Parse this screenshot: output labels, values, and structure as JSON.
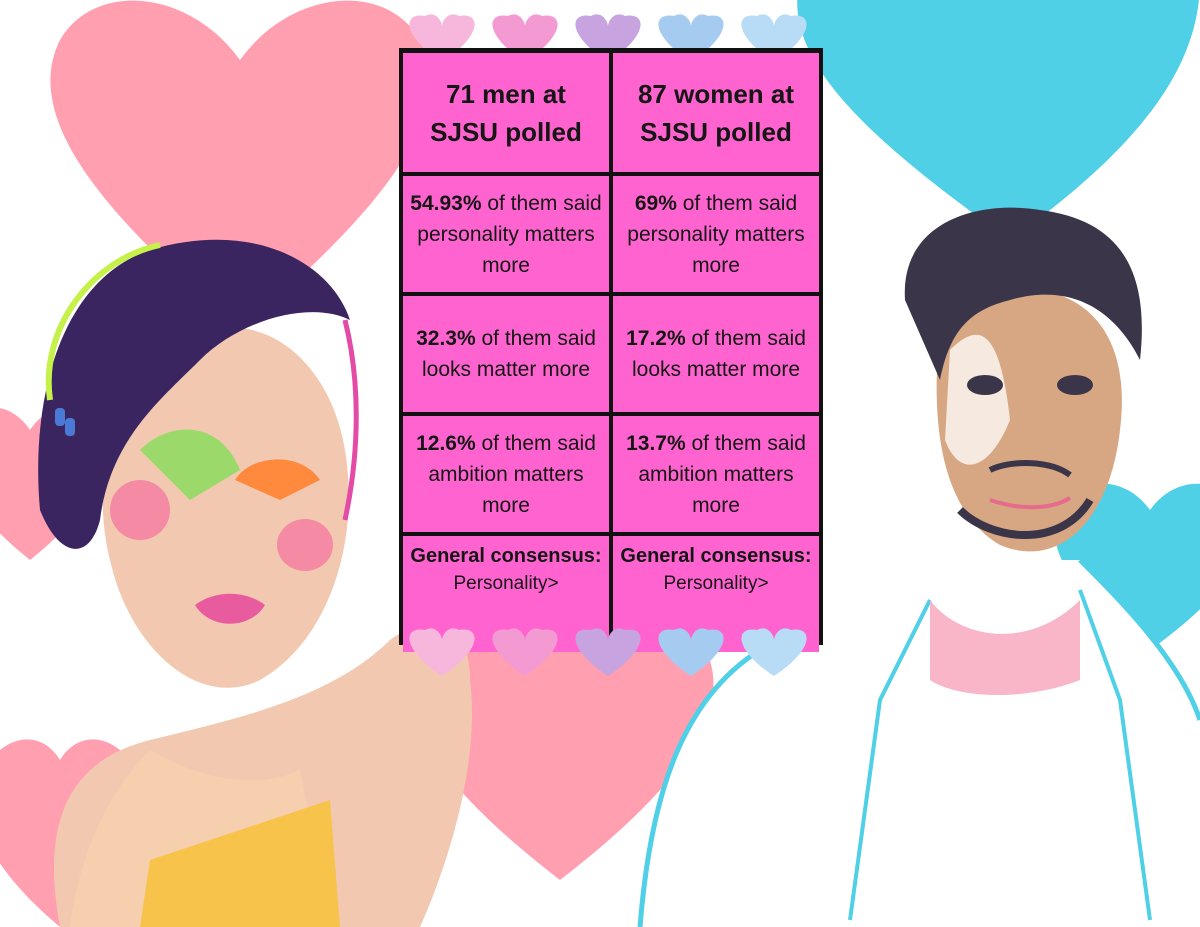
{
  "colors": {
    "cell_pink": "#ff63cf",
    "border": "#111111",
    "heart_left_bg": "#ff9fb0",
    "heart_right_bg": "#4fd0e6",
    "heart_row": [
      "#f7b7dc",
      "#f49ad2",
      "#c7a3e0",
      "#a6cbf0",
      "#b8dcf5"
    ]
  },
  "table": {
    "men_header": "71 men at SJSU polled",
    "women_header": "87 women at SJSU polled",
    "rows": [
      {
        "men": {
          "value": "54.93%",
          "text": " of them said personality matters more"
        },
        "women": {
          "value": "69%",
          "text": " of them said personality matters more"
        }
      },
      {
        "men": {
          "value": "32.3%",
          "text": " of them said looks matter more"
        },
        "women": {
          "value": "17.2%",
          "text": " of them said looks matter more"
        }
      },
      {
        "men": {
          "value": "12.6%",
          "text": " of them said ambition matters more"
        },
        "women": {
          "value": "13.7%",
          "text": " of them said ambition matters more"
        }
      }
    ],
    "consensus": {
      "men": {
        "title": "General consensus:",
        "value": "Personality>"
      },
      "women": {
        "title": "General consensus:",
        "value": "Personality>"
      }
    }
  },
  "illustrations": {
    "left": "woman-illustration",
    "right": "man-illustration"
  }
}
